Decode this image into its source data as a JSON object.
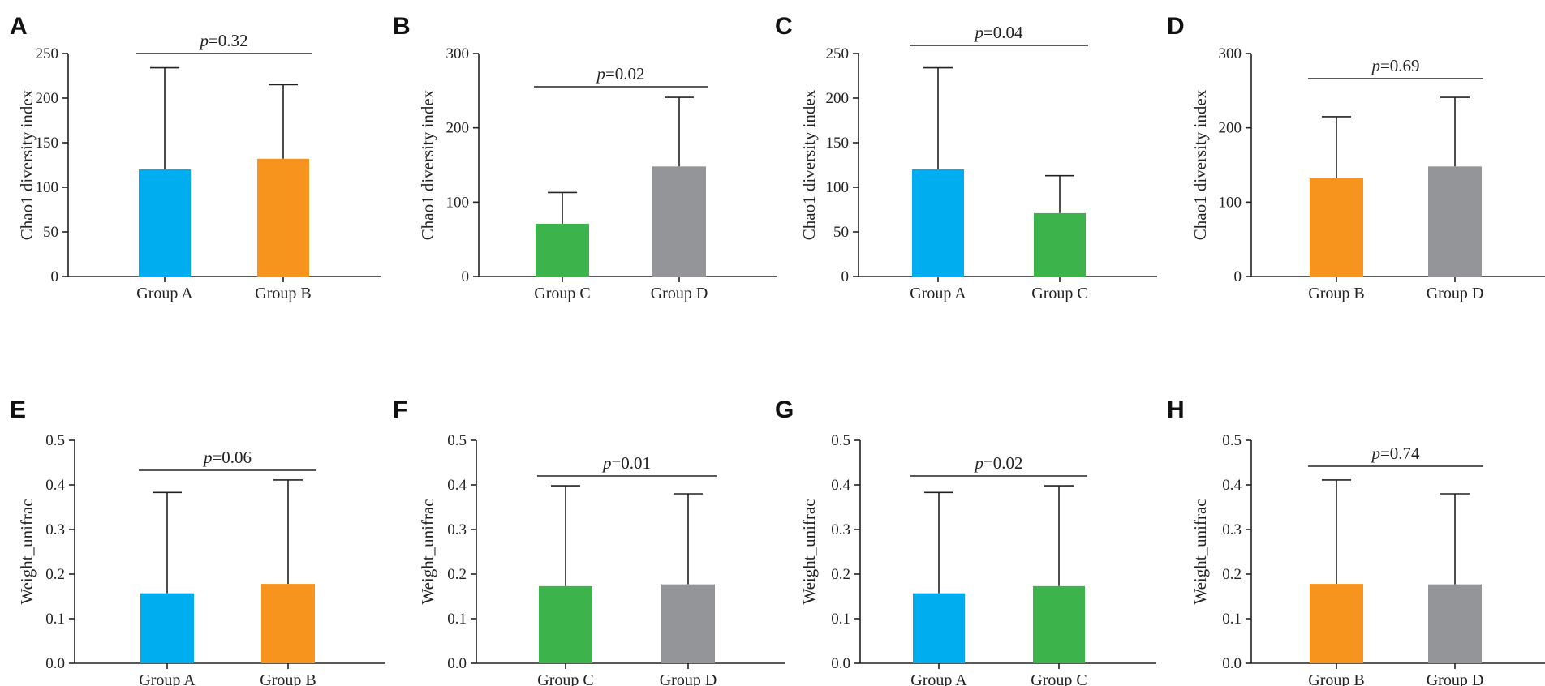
{
  "chart_data": [
    {
      "panel": "A",
      "type": "bar",
      "ylabel": "Chao1 diversity index",
      "ylim": [
        0,
        250
      ],
      "yticks": [
        "0",
        "50",
        "100",
        "150",
        "200",
        "250"
      ],
      "categories": [
        "Group A",
        "Group B"
      ],
      "values": [
        120,
        132
      ],
      "error_upper": [
        234,
        215
      ],
      "colors": [
        "#00aeef",
        "#f7941d"
      ],
      "annotation": {
        "italic": "p",
        "text": "=0.32",
        "value": 0.32
      }
    },
    {
      "panel": "B",
      "type": "bar",
      "ylabel": "Chao1 diversity index",
      "ylim": [
        0,
        300
      ],
      "yticks": [
        "0",
        "100",
        "200",
        "300"
      ],
      "categories": [
        "Group C",
        "Group D"
      ],
      "values": [
        71,
        148
      ],
      "error_upper": [
        113,
        241
      ],
      "colors": [
        "#3cb44b",
        "#939598"
      ],
      "annotation": {
        "italic": "p",
        "text": "=0.02",
        "value": 0.02
      }
    },
    {
      "panel": "C",
      "type": "bar",
      "ylabel": "Chao1 diversity index",
      "ylim": [
        0,
        250
      ],
      "yticks": [
        "0",
        "50",
        "100",
        "150",
        "200",
        "250"
      ],
      "categories": [
        "Group A",
        "Group C"
      ],
      "values": [
        120,
        71
      ],
      "error_upper": [
        234,
        113
      ],
      "colors": [
        "#00aeef",
        "#3cb44b"
      ],
      "annotation": {
        "italic": "p",
        "text": "=0.04",
        "value": 0.04
      }
    },
    {
      "panel": "D",
      "type": "bar",
      "ylabel": "Chao1 diversity index",
      "ylim": [
        0,
        300
      ],
      "yticks": [
        "0",
        "100",
        "200",
        "300"
      ],
      "categories": [
        "Group B",
        "Group D"
      ],
      "values": [
        132,
        148
      ],
      "error_upper": [
        215,
        241
      ],
      "colors": [
        "#f7941d",
        "#939598"
      ],
      "annotation": {
        "italic": "p",
        "text": "=0.69",
        "value": 0.69
      }
    },
    {
      "panel": "E",
      "type": "bar",
      "ylabel": "Weight_unifrac",
      "ylim": [
        0,
        0.5
      ],
      "yticks": [
        "0.0",
        "0.1",
        "0.2",
        "0.3",
        "0.4",
        "0.5"
      ],
      "categories": [
        "Group A",
        "Group B"
      ],
      "values": [
        0.157,
        0.178
      ],
      "error_upper": [
        0.383,
        0.411
      ],
      "colors": [
        "#00aeef",
        "#f7941d"
      ],
      "annotation": {
        "italic": "p",
        "text": "=0.06",
        "value": 0.06
      }
    },
    {
      "panel": "F",
      "type": "bar",
      "ylabel": "Weight_unifrac",
      "ylim": [
        0,
        0.5
      ],
      "yticks": [
        "0.0",
        "0.1",
        "0.2",
        "0.3",
        "0.4",
        "0.5"
      ],
      "categories": [
        "Group C",
        "Group D"
      ],
      "values": [
        0.173,
        0.177
      ],
      "error_upper": [
        0.398,
        0.38
      ],
      "colors": [
        "#3cb44b",
        "#939598"
      ],
      "annotation": {
        "italic": "p",
        "text": "=0.01",
        "value": 0.01
      }
    },
    {
      "panel": "G",
      "type": "bar",
      "ylabel": "Weight_unifrac",
      "ylim": [
        0,
        0.5
      ],
      "yticks": [
        "0.0",
        "0.1",
        "0.2",
        "0.3",
        "0.4",
        "0.5"
      ],
      "categories": [
        "Group A",
        "Group C"
      ],
      "values": [
        0.157,
        0.173
      ],
      "error_upper": [
        0.383,
        0.398
      ],
      "colors": [
        "#00aeef",
        "#3cb44b"
      ],
      "annotation": {
        "italic": "p",
        "text": "=0.02",
        "value": 0.02
      }
    },
    {
      "panel": "H",
      "type": "bar",
      "ylabel": "Weight_unifrac",
      "ylim": [
        0,
        0.5
      ],
      "yticks": [
        "0.0",
        "0.1",
        "0.2",
        "0.3",
        "0.4",
        "0.5"
      ],
      "categories": [
        "Group B",
        "Group D"
      ],
      "values": [
        0.178,
        0.177
      ],
      "error_upper": [
        0.411,
        0.38
      ],
      "colors": [
        "#f7941d",
        "#939598"
      ],
      "annotation": {
        "italic": "p",
        "text": "=0.74",
        "value": 0.74
      }
    }
  ]
}
